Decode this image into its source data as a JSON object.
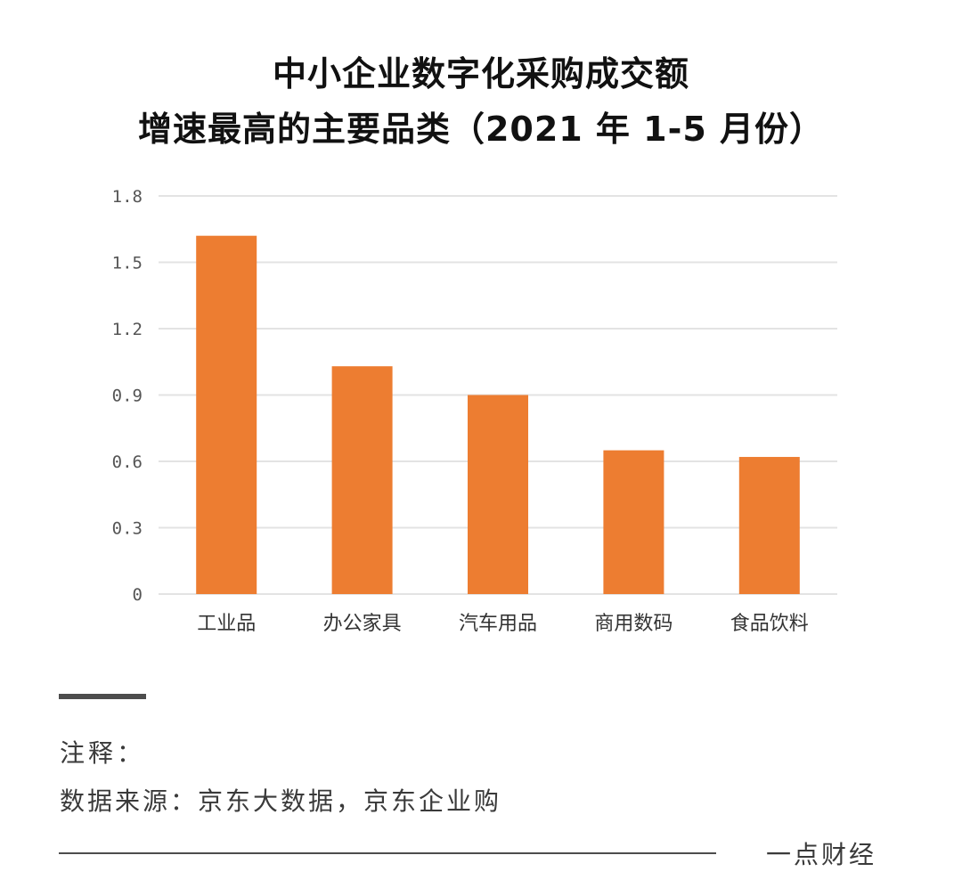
{
  "title_lines": [
    "中小企业数字化采购成交额",
    "增速最高的主要品类（2021 年 1-5 月份）"
  ],
  "chart_data": {
    "type": "bar",
    "title": "中小企业数字化采购成交额 增速最高的主要品类（2021 年 1-5 月份）",
    "categories": [
      "工业品",
      "办公家具",
      "汽车用品",
      "商用数码",
      "食品饮料"
    ],
    "values": [
      1.62,
      1.03,
      0.9,
      0.65,
      0.62
    ],
    "y_ticks": [
      "0",
      "0.3",
      "0.6",
      "0.9",
      "1.2",
      "1.5",
      "1.8"
    ],
    "ylim": [
      0,
      1.8
    ],
    "grid": true,
    "legend": false,
    "bar_color": "#ED7D31",
    "grid_color": "#E3E3E3"
  },
  "notes": {
    "label": "注释：",
    "source": "数据来源：京东大数据，京东企业购"
  },
  "footer": {
    "brand": "一点财经"
  }
}
